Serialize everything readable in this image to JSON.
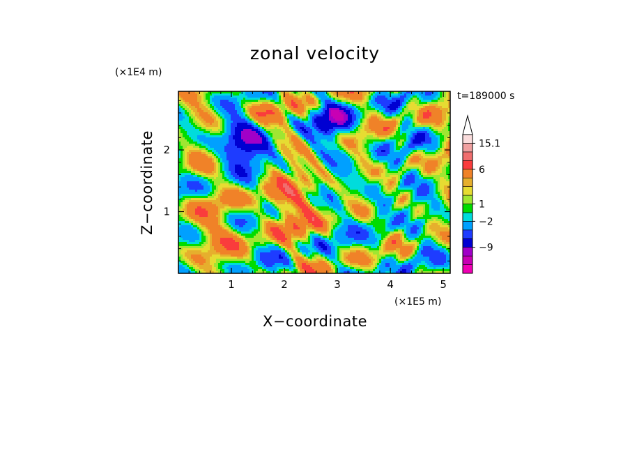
{
  "chart_data": {
    "type": "heatmap",
    "title": "zonal velocity",
    "xlabel": "X−coordinate",
    "ylabel": "Z−coordinate",
    "x_unit": "(×1E5 m)",
    "y_unit": "(×1E4 m)",
    "time_label": "t=189000 s",
    "xlim": [
      0,
      5.13
    ],
    "ylim": [
      0,
      2.95
    ],
    "x_ticks": [
      {
        "value": 1,
        "label": "1"
      },
      {
        "value": 2,
        "label": "2"
      },
      {
        "value": 3,
        "label": "3"
      },
      {
        "value": 4,
        "label": "4"
      },
      {
        "value": 5,
        "label": "5"
      }
    ],
    "y_ticks": [
      {
        "value": 1,
        "label": "1"
      },
      {
        "value": 2,
        "label": "2"
      }
    ],
    "colorbar": {
      "colors": [
        "#f000b4",
        "#c800b4",
        "#a000c8",
        "#0000d2",
        "#1e3cff",
        "#00a0ff",
        "#00dcdc",
        "#00dc00",
        "#a0e632",
        "#e6dc32",
        "#e6af2d",
        "#f08228",
        "#fa3c3c",
        "#f06e6e",
        "#f0a0a0",
        "#fadcdc"
      ],
      "labels": [
        {
          "level": 3,
          "text": "−9"
        },
        {
          "level": 6,
          "text": "−2"
        },
        {
          "level": 8,
          "text": "1"
        },
        {
          "level": 12,
          "text": "6"
        },
        {
          "level": 15,
          "text": "15.1"
        }
      ],
      "extend": "max"
    }
  }
}
